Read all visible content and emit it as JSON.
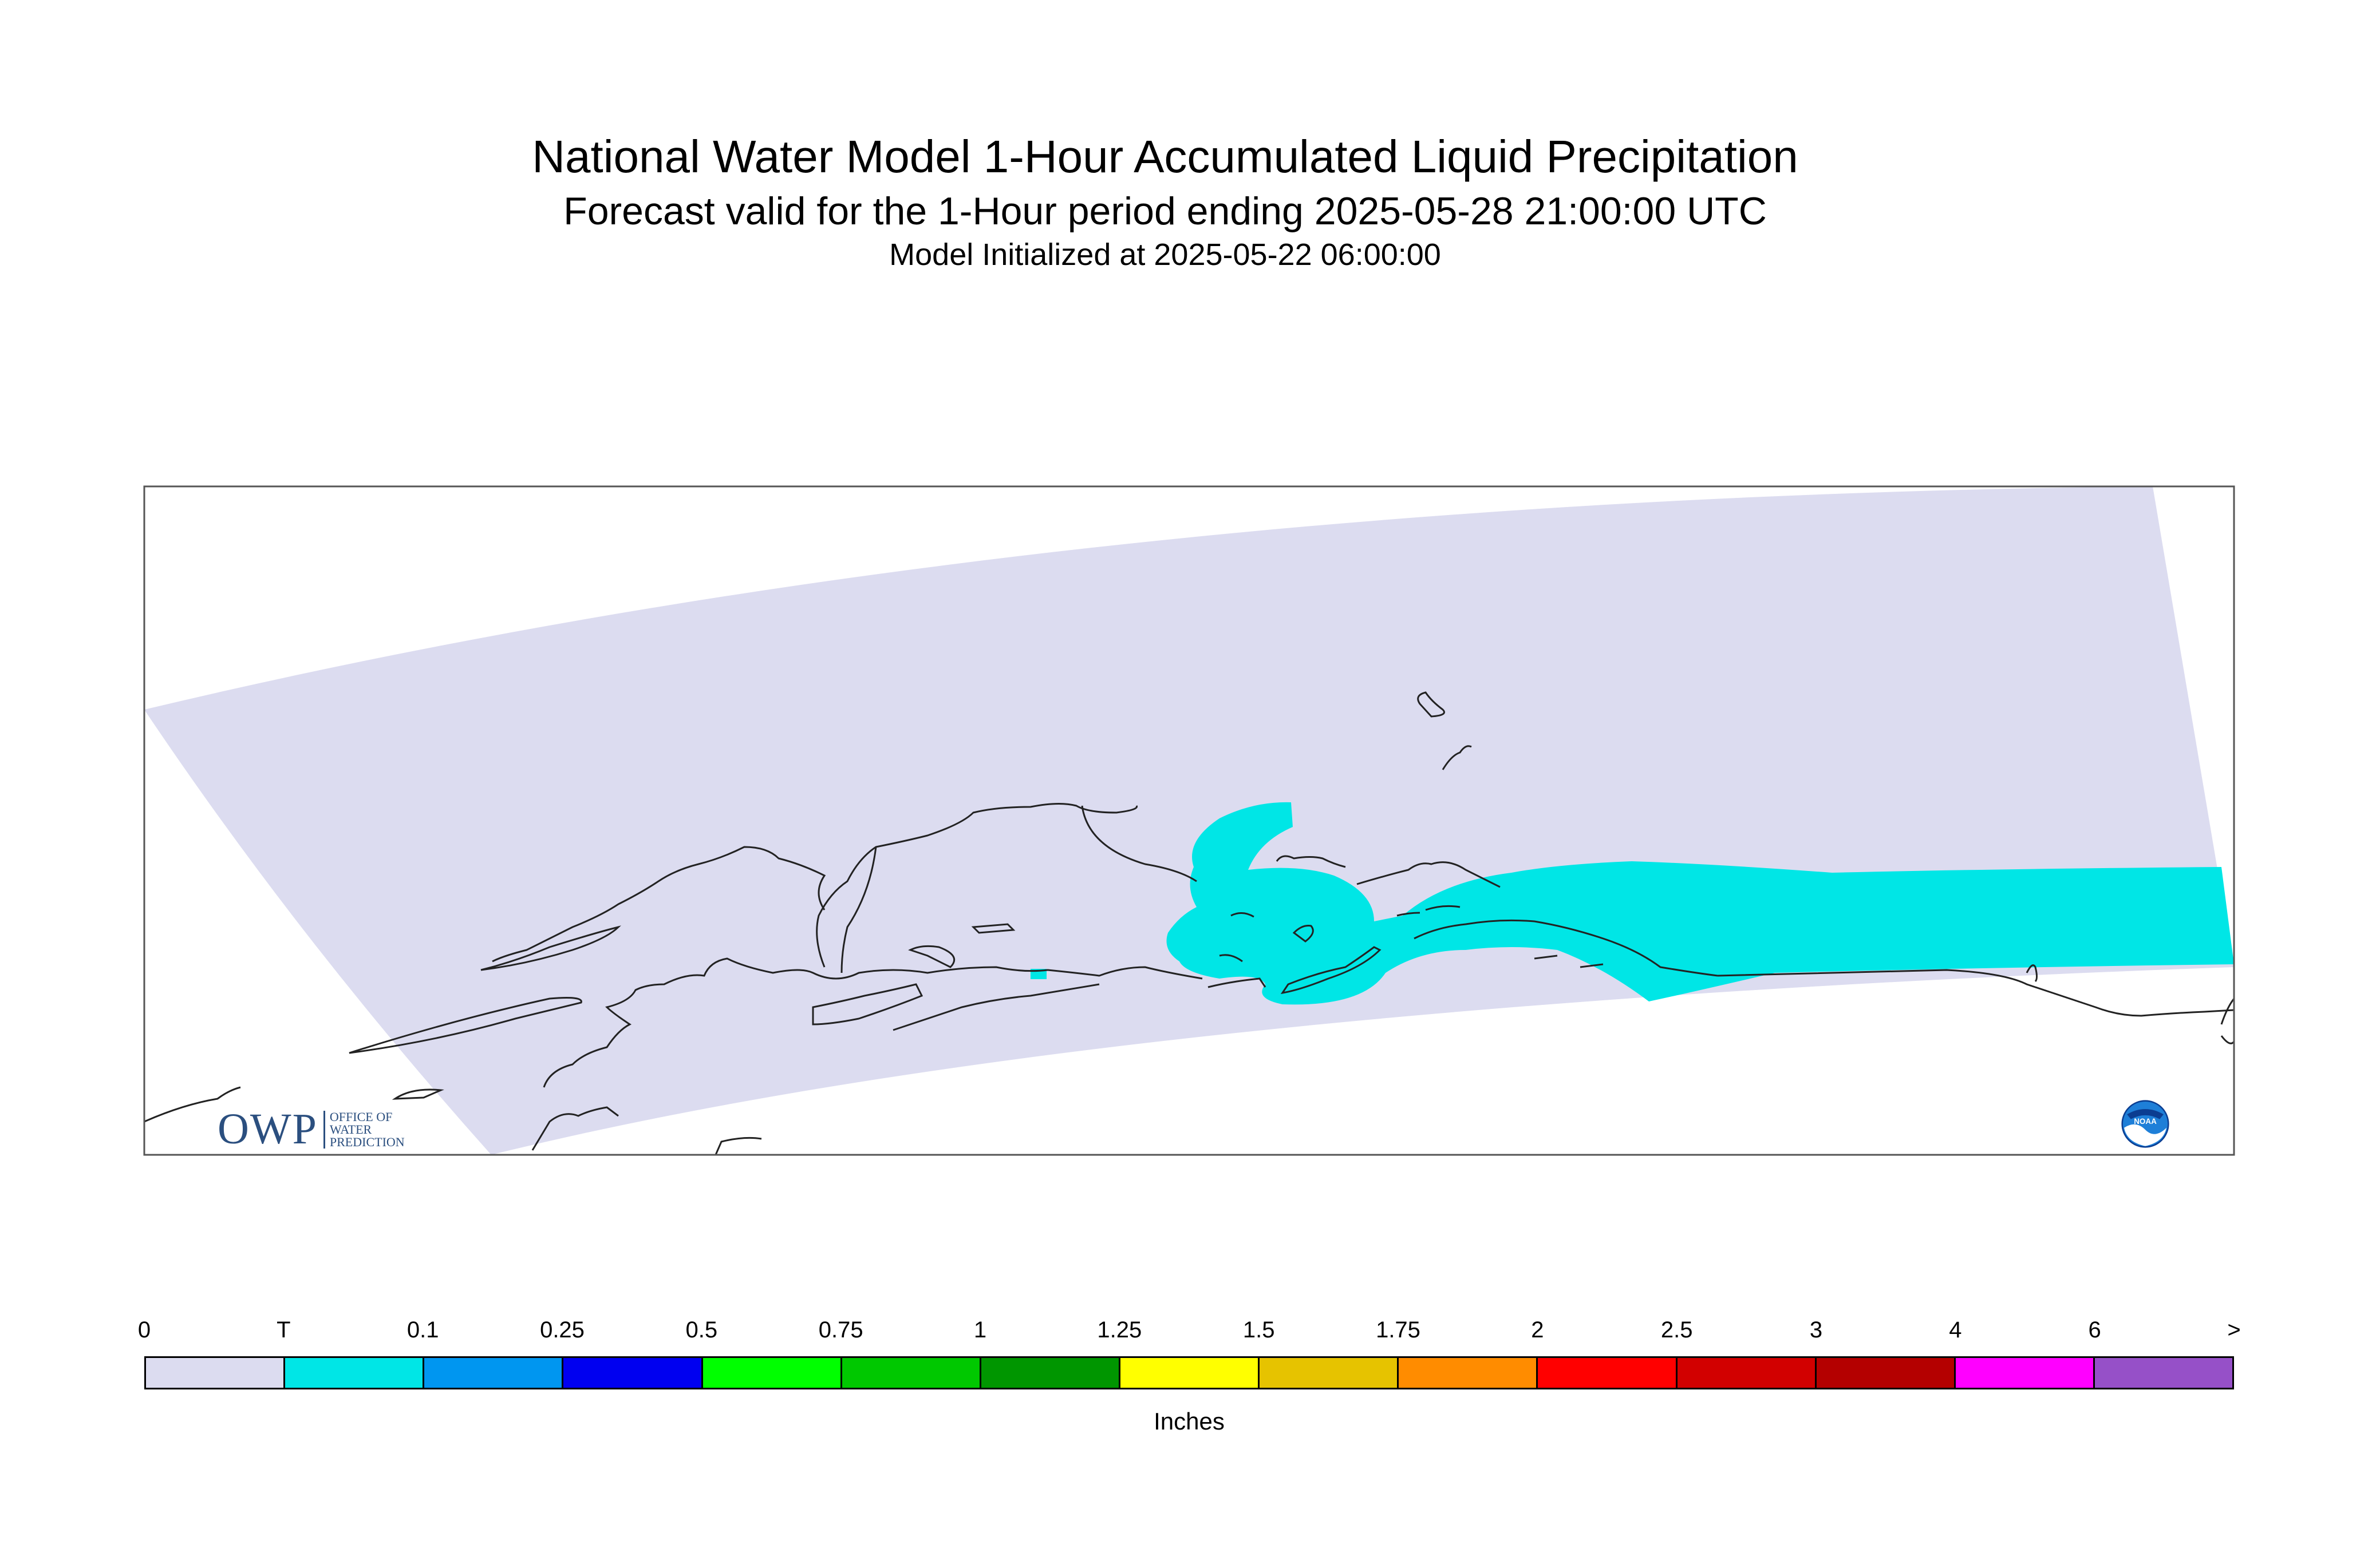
{
  "title": "National Water Model 1-Hour Accumulated Liquid Precipitation",
  "subtitle": "Forecast valid for the 1-Hour period ending 2025-05-28 21:00:00 UTC",
  "init": "Model Initialized at 2025-05-22 06:00:00",
  "logos": {
    "owp_big": "OWP",
    "owp_line1": "Office of",
    "owp_line2": "Water",
    "owp_line3": "Prediction",
    "noaa": "NOAA"
  },
  "colors": {
    "domain_zero": "#dcdcf0",
    "trace": "#00e6e6",
    "coast": "#222222"
  },
  "legend": {
    "units": "Inches",
    "ticks": [
      "0",
      "T",
      "0.1",
      "0.25",
      "0.5",
      "0.75",
      "1",
      "1.25",
      "1.5",
      "1.75",
      "2",
      "2.5",
      "3",
      "4",
      "6",
      ">"
    ],
    "colors": [
      "#dcdcf0",
      "#00e6e6",
      "#0096f0",
      "#0000f0",
      "#00ff00",
      "#00c800",
      "#009600",
      "#ffff00",
      "#e6c300",
      "#ff8c00",
      "#ff0000",
      "#d20000",
      "#b40000",
      "#ff00ff",
      "#9650c8"
    ]
  }
}
